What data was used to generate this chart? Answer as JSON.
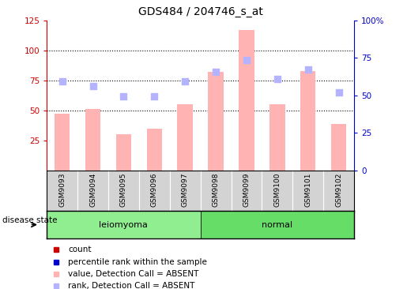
{
  "title": "GDS484 / 204746_s_at",
  "samples": [
    "GSM9093",
    "GSM9094",
    "GSM9095",
    "GSM9096",
    "GSM9097",
    "GSM9098",
    "GSM9099",
    "GSM9100",
    "GSM9101",
    "GSM9102"
  ],
  "bar_values": [
    47,
    51,
    30,
    35,
    55,
    82,
    117,
    55,
    83,
    39
  ],
  "rank_values": [
    74,
    70,
    62,
    62,
    74,
    82,
    92,
    76,
    84,
    65
  ],
  "bar_color": "#ffb3b3",
  "rank_color": "#b3b3ff",
  "left_ylim": [
    0,
    125
  ],
  "right_ylim": [
    0,
    100
  ],
  "left_yticks": [
    25,
    50,
    75,
    100,
    125
  ],
  "right_yticks": [
    0,
    25,
    50,
    75,
    100
  ],
  "right_yticklabels": [
    "0",
    "25",
    "50",
    "75",
    "100%"
  ],
  "grid_lines": [
    50,
    75,
    100
  ],
  "disease_groups": [
    {
      "label": "leiomyoma",
      "start": 0,
      "end": 5,
      "color": "#90EE90"
    },
    {
      "label": "normal",
      "start": 5,
      "end": 10,
      "color": "#66DD66"
    }
  ],
  "legend_items": [
    {
      "label": "count",
      "color": "#cc0000"
    },
    {
      "label": "percentile rank within the sample",
      "color": "#0000cc"
    },
    {
      "label": "value, Detection Call = ABSENT",
      "color": "#ffb3b3"
    },
    {
      "label": "rank, Detection Call = ABSENT",
      "color": "#b3b3ff"
    }
  ],
  "disease_state_label": "disease state",
  "left_axis_color": "#cc0000",
  "right_axis_color": "#0000cc",
  "background_color": "#ffffff",
  "tick_bg_color": "#d3d3d3"
}
